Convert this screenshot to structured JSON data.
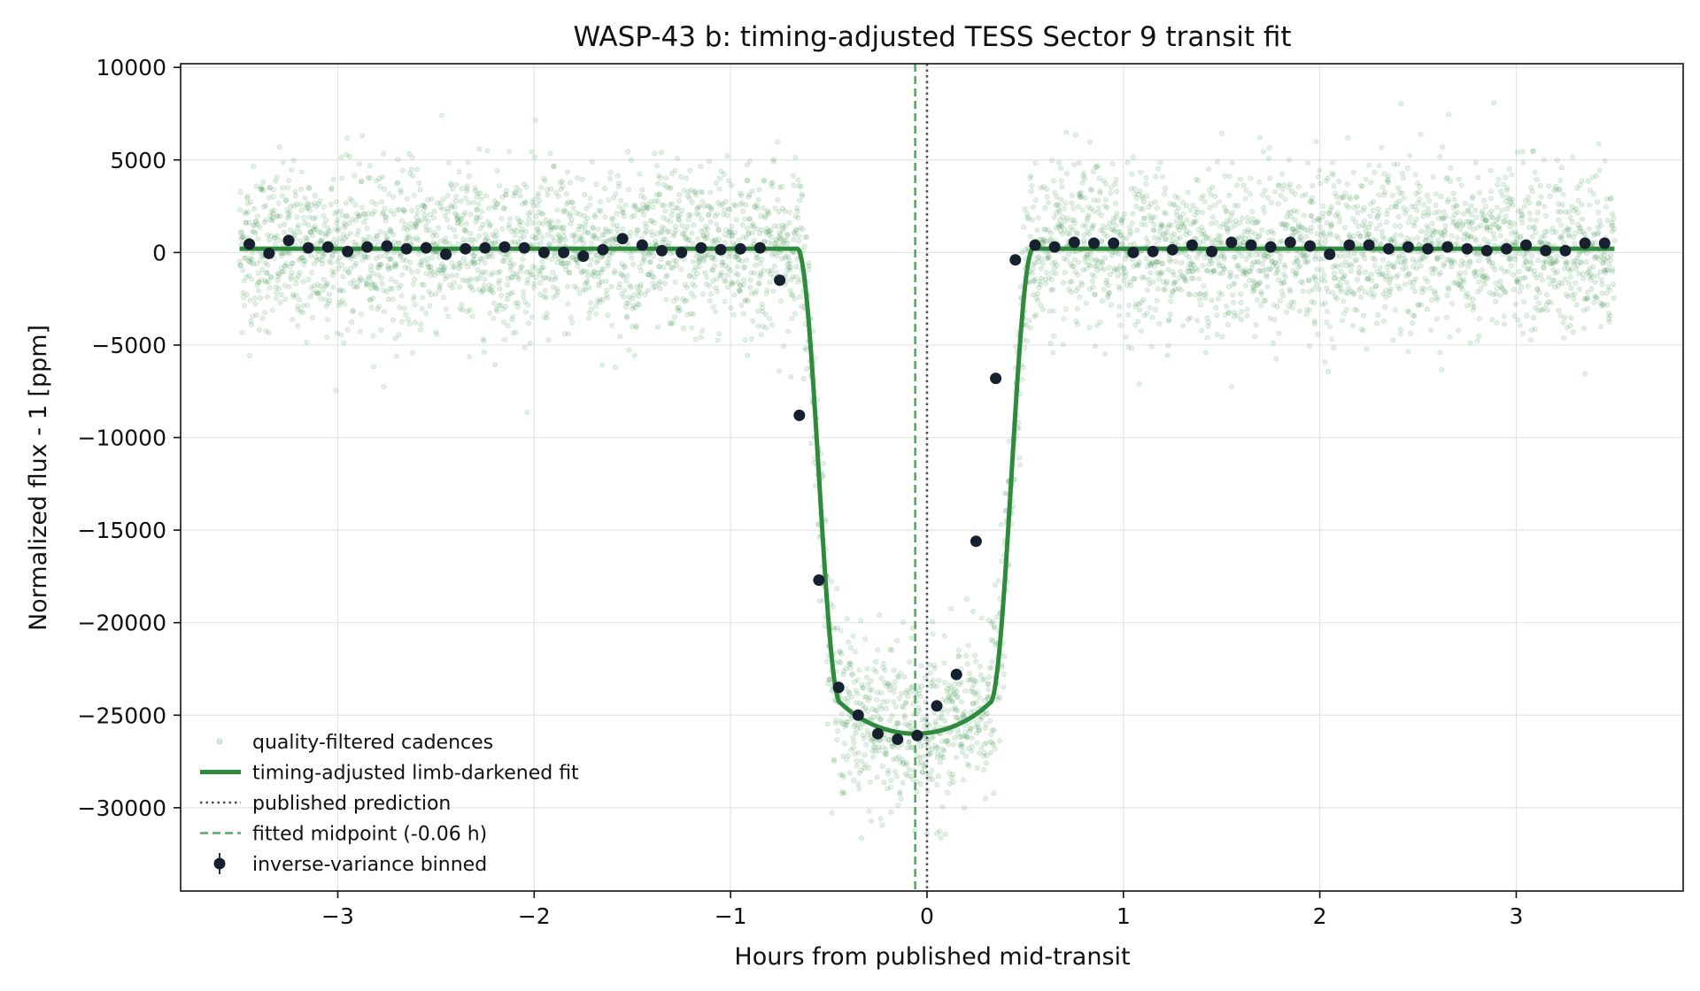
{
  "chart_data": {
    "type": "scatter",
    "title": "WASP-43 b: timing-adjusted TESS Sector 9 transit fit",
    "xlabel": "Hours from published mid-transit",
    "ylabel": "Normalized flux - 1 [ppm]",
    "xlim": [
      -3.8,
      3.85
    ],
    "ylim": [
      -34500,
      10200
    ],
    "xticks": [
      -3,
      -2,
      -1,
      0,
      1,
      2,
      3
    ],
    "xtick_labels": [
      "−3",
      "−2",
      "−1",
      "0",
      "1",
      "2",
      "3"
    ],
    "yticks": [
      10000,
      5000,
      0,
      -5000,
      -10000,
      -15000,
      -20000,
      -25000,
      -30000
    ],
    "ytick_labels": [
      "10000",
      "5000",
      "0",
      "−5000",
      "−10000",
      "−15000",
      "−20000",
      "−25000",
      "−30000"
    ],
    "grid": true,
    "legend_position": "lower-left",
    "colors": {
      "raw": "#2e8b3e",
      "fit": "#2e8b3e",
      "binned": "#17202e",
      "published_line": "#4a4f5c",
      "midpoint_line": "#5aa866"
    },
    "fit_model": {
      "x_range": [
        -3.5,
        3.5
      ],
      "baseline": 200,
      "depth": 26200,
      "center": -0.06,
      "half_width_1st_to_4th_contact": 0.6,
      "ingress_duration": 0.22
    },
    "raw_cadences": {
      "note_count_approx": 5000,
      "scatter_ppm": 2200,
      "x_range": [
        -3.5,
        3.5
      ]
    },
    "published_prediction_x": 0.0,
    "fitted_midpoint_x": -0.06,
    "binned": {
      "x": [
        -3.45,
        -3.35,
        -3.25,
        -3.15,
        -3.05,
        -2.95,
        -2.85,
        -2.75,
        -2.65,
        -2.55,
        -2.45,
        -2.35,
        -2.25,
        -2.15,
        -2.05,
        -1.95,
        -1.85,
        -1.75,
        -1.65,
        -1.55,
        -1.45,
        -1.35,
        -1.25,
        -1.15,
        -1.05,
        -0.95,
        -0.85,
        -0.75,
        -0.65,
        -0.55,
        -0.45,
        -0.35,
        -0.25,
        -0.15,
        -0.05,
        0.05,
        0.15,
        0.25,
        0.35,
        0.45,
        0.55,
        0.65,
        0.75,
        0.85,
        0.95,
        1.05,
        1.15,
        1.25,
        1.35,
        1.45,
        1.55,
        1.65,
        1.75,
        1.85,
        1.95,
        2.05,
        2.15,
        2.25,
        2.35,
        2.45,
        2.55,
        2.65,
        2.75,
        2.85,
        2.95,
        3.05,
        3.15,
        3.25,
        3.35,
        3.45
      ],
      "y": [
        450,
        -50,
        650,
        250,
        300,
        50,
        300,
        350,
        200,
        250,
        -100,
        200,
        250,
        300,
        250,
        0,
        0,
        -200,
        150,
        750,
        400,
        100,
        0,
        250,
        150,
        200,
        250,
        -1500,
        -8800,
        -17700,
        -23500,
        -25000,
        -26000,
        -26300,
        -26100,
        -24500,
        -22800,
        -15600,
        -6800,
        -400,
        400,
        300,
        550,
        500,
        500,
        0,
        50,
        150,
        400,
        50,
        550,
        400,
        300,
        550,
        350,
        -100,
        400,
        400,
        200,
        300,
        200,
        300,
        200,
        100,
        200,
        400,
        100,
        100,
        500,
        500
      ]
    },
    "legend": [
      {
        "label": "quality-filtered cadences",
        "marker": "dot"
      },
      {
        "label": "timing-adjusted limb-darkened fit",
        "marker": "solid-line"
      },
      {
        "label": "published prediction",
        "marker": "dotted-line"
      },
      {
        "label": "fitted midpoint (-0.06 h)",
        "marker": "dashed-line"
      },
      {
        "label": "inverse-variance binned",
        "marker": "errorbar-dot"
      }
    ]
  }
}
